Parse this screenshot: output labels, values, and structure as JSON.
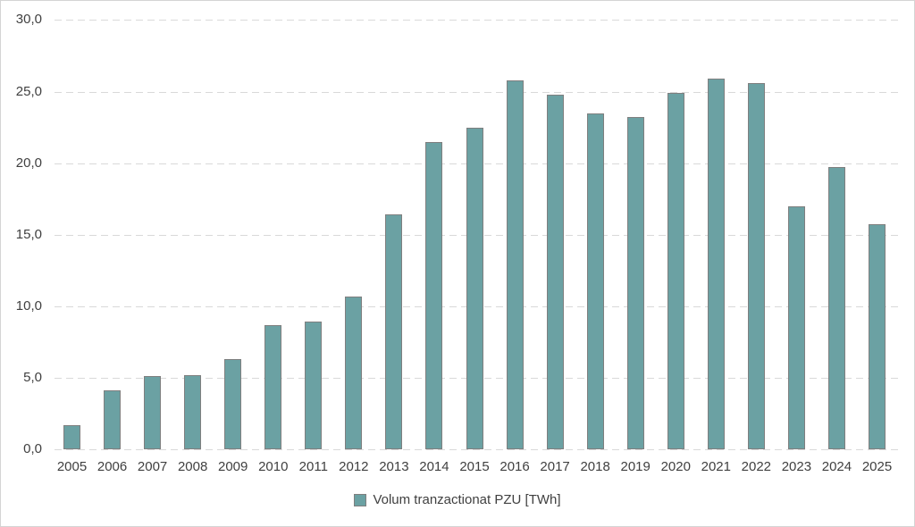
{
  "chart_data": {
    "type": "bar",
    "title": "",
    "xlabel": "",
    "ylabel": "",
    "categories": [
      "2005",
      "2006",
      "2007",
      "2008",
      "2009",
      "2010",
      "2011",
      "2012",
      "2013",
      "2014",
      "2015",
      "2016",
      "2017",
      "2018",
      "2019",
      "2020",
      "2021",
      "2022",
      "2023",
      "2024",
      "2025"
    ],
    "values": [
      1.7,
      4.1,
      5.1,
      5.2,
      6.3,
      8.7,
      8.9,
      10.7,
      16.4,
      21.5,
      22.5,
      25.8,
      24.8,
      23.5,
      23.2,
      24.9,
      25.9,
      25.6,
      17.0,
      19.7,
      15.7
    ],
    "ylim": [
      0,
      30
    ],
    "ytick_step": 5,
    "ytick_labels": [
      "0,0",
      "5,0",
      "10,0",
      "15,0",
      "20,0",
      "25,0",
      "30,0"
    ],
    "grid": "horizontal-dashed",
    "legend": {
      "label": "Volum tranzactionat PZU [TWh]",
      "position": "bottom-center"
    },
    "colors": {
      "bar_fill": "#6BA1A3",
      "bar_border": "#7F7F7F",
      "gridline": "#D9D9D9",
      "text": "#404040",
      "frame_border": "#D4D4D4",
      "background": "#FFFFFF"
    }
  }
}
